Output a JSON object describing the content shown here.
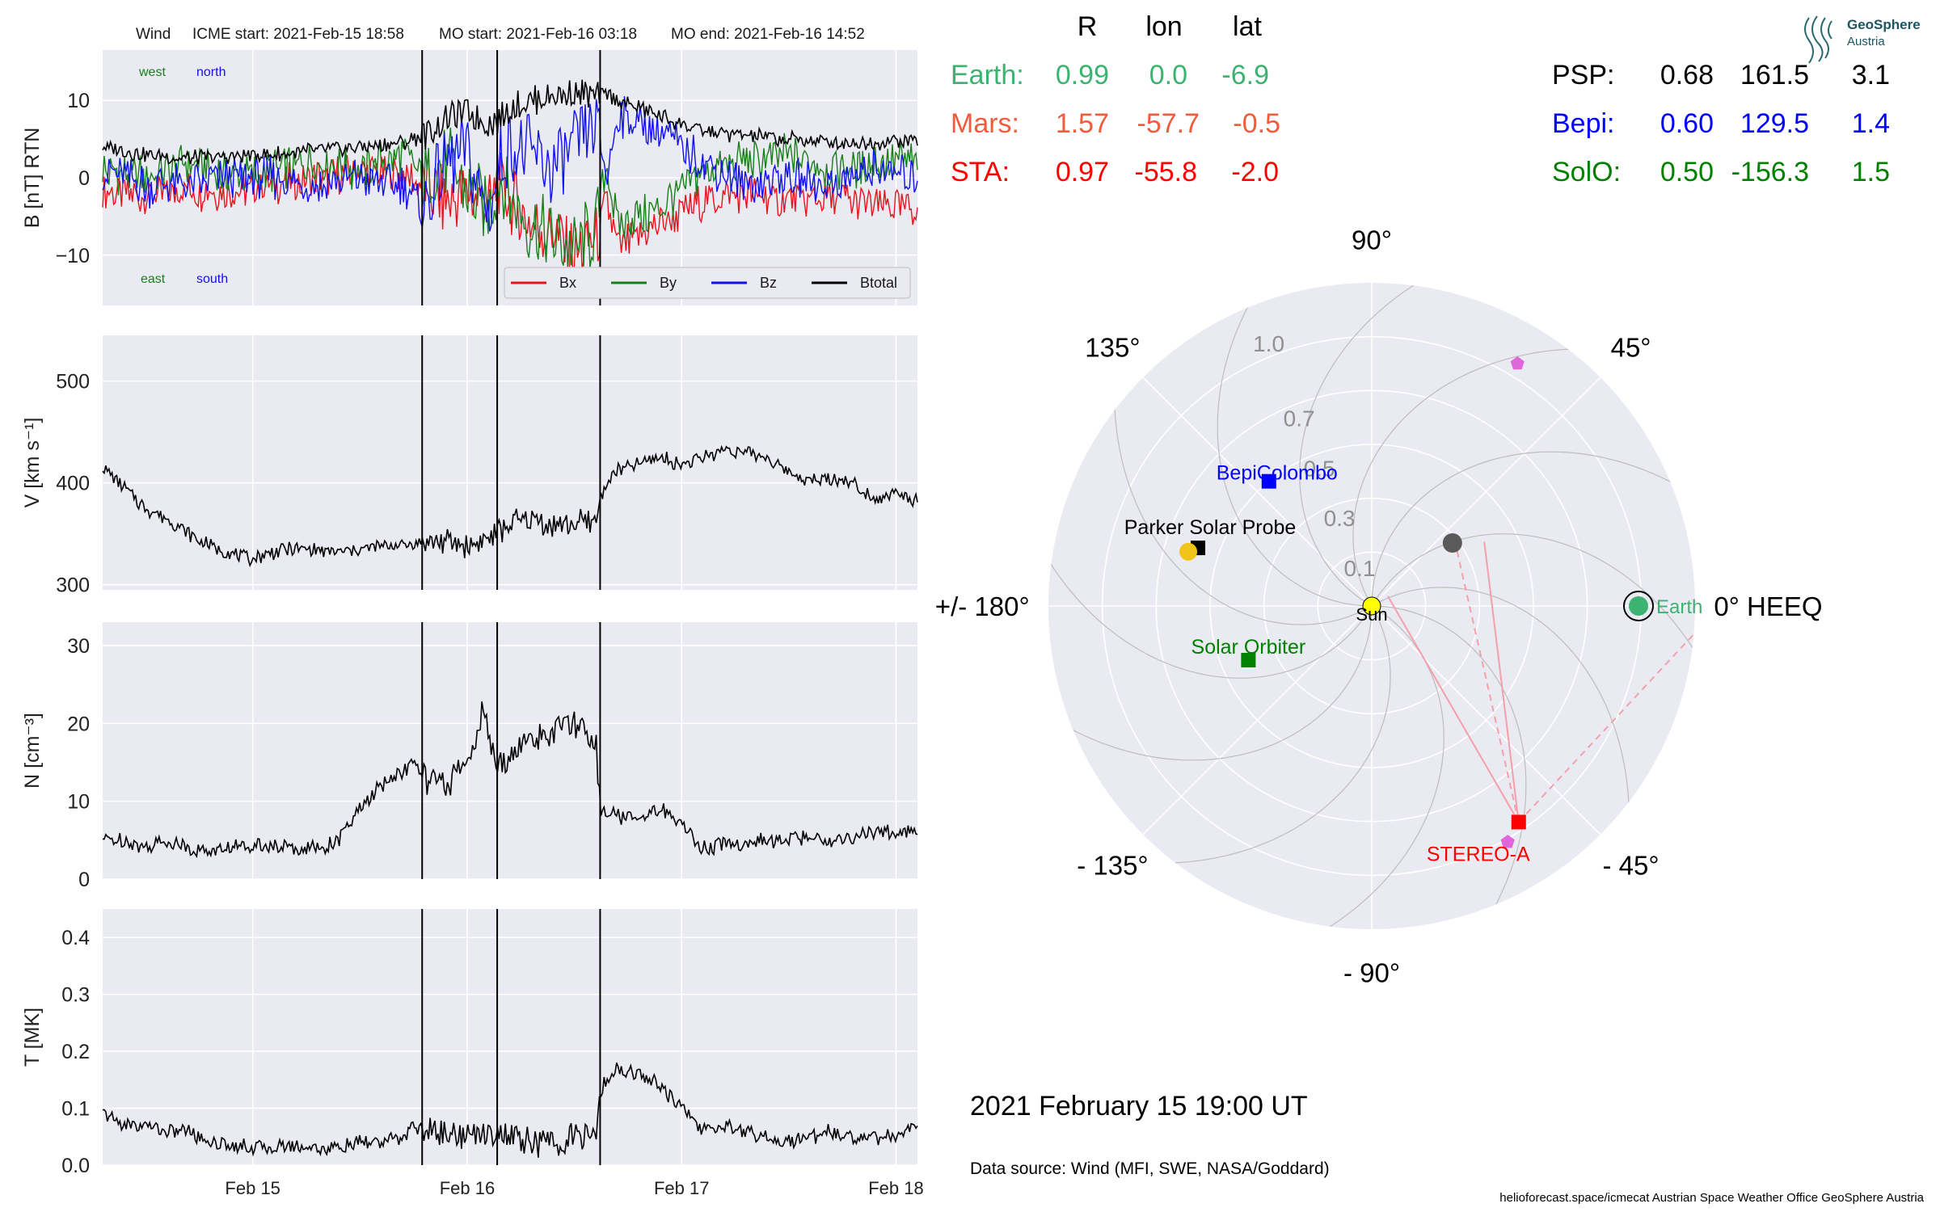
{
  "header": {
    "spacecraft": "Wind",
    "icme_start": "ICME start: 2021-Feb-15 18:58",
    "mo_start": "MO start: 2021-Feb-16 03:18",
    "mo_end": "MO end: 2021-Feb-16 14:52"
  },
  "colors": {
    "bx": "#e8141c",
    "by": "#1a7f1a",
    "bz": "#1010f0",
    "btotal": "#000000",
    "earth": "#3cb371",
    "mars": "#f25c3c",
    "sta": "#ff0000",
    "psp": "#000000",
    "bepi": "#0000ff",
    "solo": "#008000",
    "panel_bg": "#eaeaf2",
    "grid": "#ffffff"
  },
  "position_table": {
    "col_headers": [
      "R",
      "lon",
      "lat"
    ],
    "left_rows": [
      {
        "name": "Earth:",
        "R": "0.99",
        "lon": "0.0",
        "lat": "-6.9",
        "color": "#3cb371"
      },
      {
        "name": "Mars:",
        "R": "1.57",
        "lon": "-57.7",
        "lat": "-0.5",
        "color": "#f25c3c"
      },
      {
        "name": "STA:",
        "R": "0.97",
        "lon": "-55.8",
        "lat": "-2.0",
        "color": "#ff0000"
      }
    ],
    "right_rows": [
      {
        "name": "PSP:",
        "R": "0.68",
        "lon": "161.5",
        "lat": "3.1",
        "color": "#000000"
      },
      {
        "name": "Bepi:",
        "R": "0.60",
        "lon": "129.5",
        "lat": "1.4",
        "color": "#0000ff"
      },
      {
        "name": "SolO:",
        "R": "0.50",
        "lon": "-156.3",
        "lat": "1.5",
        "color": "#008000"
      }
    ]
  },
  "logo": {
    "line1": "GeoSphere",
    "line2": "Austria"
  },
  "polar": {
    "angle_labels": [
      {
        "text": "0° HEEQ",
        "angle": 0
      },
      {
        "text": "45°",
        "angle": 45
      },
      {
        "text": "90°",
        "angle": 90
      },
      {
        "text": "135°",
        "angle": 135
      },
      {
        "text": "+/- 180°",
        "angle": 180
      },
      {
        "text": "- 135°",
        "angle": -135
      },
      {
        "text": "- 90°",
        "angle": -90
      },
      {
        "text": "- 45°",
        "angle": -45
      }
    ],
    "radial_labels": [
      "0.1",
      "0.3",
      "0.5",
      "0.7",
      "1.0"
    ],
    "bodies": [
      {
        "label": "Sun",
        "r": 0,
        "lon": 0,
        "marker": "circle",
        "color": "#ffff00"
      },
      {
        "label": "Earth",
        "r": 0.99,
        "lon": 0.0,
        "marker": "circle",
        "color": "#3cb371"
      },
      {
        "label": "STEREO-A",
        "r": 0.97,
        "lon": -55.8,
        "marker": "square",
        "color": "#ff0000"
      },
      {
        "label": "Parker Solar Probe",
        "r": 0.68,
        "lon": 161.5,
        "marker": "square",
        "color": "#000000"
      },
      {
        "label": "BepiColombo",
        "r": 0.6,
        "lon": 129.5,
        "marker": "square",
        "color": "#0000ff"
      },
      {
        "label": "Solar Orbiter",
        "r": 0.5,
        "lon": -156.3,
        "marker": "square",
        "color": "#008000"
      }
    ]
  },
  "datetime": "2021 February 15  19:00 UT",
  "data_source": "Data source: Wind (MFI, SWE, NASA/Goddard)",
  "footer": "helioforecast.space/icmecat   Austrian Space Weather Office   GeoSphere Austria",
  "chart_data": [
    {
      "type": "line",
      "panel": "B",
      "ylabel": "B [nT] RTN",
      "ylim": [
        -16.5,
        16.5
      ],
      "yticks": [
        -10,
        0,
        10
      ],
      "xlim": [
        0,
        3.8
      ],
      "xticks": [
        {
          "x": 0.7,
          "label": "Feb 15"
        },
        {
          "x": 1.7,
          "label": "Feb 16"
        },
        {
          "x": 2.7,
          "label": "Feb 17"
        },
        {
          "x": 3.7,
          "label": "Feb 18"
        }
      ],
      "event_lines_x": [
        1.49,
        1.84,
        2.32
      ],
      "annotations": {
        "top_left": "west",
        "top_right": "north",
        "bottom_left": "east",
        "bottom_right": "south"
      },
      "legend": {
        "entries": [
          "Bx",
          "By",
          "Bz",
          "Btotal"
        ],
        "placement": "lower-right"
      },
      "series": [
        {
          "name": "Bx",
          "color": "#e8141c",
          "x": [
            0.0,
            0.2,
            0.4,
            0.6,
            0.8,
            1.0,
            1.2,
            1.4,
            1.5,
            1.6,
            1.7,
            1.8,
            1.85,
            1.9,
            2.0,
            2.1,
            2.2,
            2.3,
            2.35,
            2.4,
            2.5,
            2.6,
            2.8,
            3.0,
            3.2,
            3.4,
            3.6,
            3.8
          ],
          "y": [
            -2.0,
            -2.5,
            -1.5,
            -2.0,
            -1.0,
            0.0,
            1.0,
            0.5,
            -1.0,
            -3.0,
            -2.0,
            -4.0,
            -1.0,
            -3.0,
            -6.0,
            -7.0,
            -10.0,
            -8.0,
            -3.0,
            -9.0,
            -8.0,
            -6.0,
            -3.0,
            -2.0,
            -3.0,
            -2.5,
            -3.5,
            -4.0
          ]
        },
        {
          "name": "By",
          "color": "#1a7f1a",
          "x": [
            0.0,
            0.2,
            0.4,
            0.6,
            0.8,
            1.0,
            1.2,
            1.4,
            1.5,
            1.6,
            1.7,
            1.8,
            1.85,
            1.9,
            2.0,
            2.1,
            2.2,
            2.3,
            2.35,
            2.4,
            2.5,
            2.6,
            2.8,
            3.0,
            3.2,
            3.4,
            3.6,
            3.8
          ],
          "y": [
            1.0,
            0.0,
            2.0,
            0.0,
            1.0,
            2.0,
            1.0,
            3.0,
            0.0,
            2.0,
            -2.0,
            -4.0,
            0.0,
            -3.0,
            -6.0,
            -8.0,
            -9.0,
            -7.0,
            2.0,
            -6.0,
            -5.0,
            -4.0,
            1.0,
            2.0,
            3.0,
            1.0,
            2.0,
            2.0
          ]
        },
        {
          "name": "Bz",
          "color": "#1010f0",
          "x": [
            0.0,
            0.2,
            0.4,
            0.6,
            0.8,
            1.0,
            1.2,
            1.4,
            1.5,
            1.6,
            1.7,
            1.8,
            1.85,
            1.9,
            2.0,
            2.1,
            2.2,
            2.3,
            2.35,
            2.4,
            2.5,
            2.6,
            2.8,
            3.0,
            3.2,
            3.4,
            3.6,
            3.8
          ],
          "y": [
            1.0,
            -1.0,
            -1.0,
            0.0,
            0.0,
            -1.0,
            0.0,
            -1.0,
            -4.0,
            2.0,
            3.0,
            -5.0,
            2.0,
            4.0,
            3.0,
            1.0,
            4.0,
            7.0,
            0.0,
            8.0,
            7.0,
            6.0,
            2.0,
            -1.0,
            0.0,
            -1.0,
            1.0,
            0.0
          ]
        },
        {
          "name": "Btotal",
          "color": "#000000",
          "x": [
            0.0,
            0.2,
            0.4,
            0.6,
            0.8,
            1.0,
            1.2,
            1.4,
            1.5,
            1.6,
            1.7,
            1.8,
            1.85,
            1.9,
            2.0,
            2.1,
            2.2,
            2.3,
            2.35,
            2.4,
            2.5,
            2.6,
            2.8,
            3.0,
            3.2,
            3.4,
            3.6,
            3.8
          ],
          "y": [
            4.0,
            3.0,
            2.5,
            2.8,
            3.0,
            3.5,
            4.0,
            4.5,
            5.5,
            7.5,
            8.5,
            7.0,
            7.5,
            9.0,
            10.0,
            10.5,
            11.0,
            10.5,
            11.0,
            10.0,
            9.0,
            8.0,
            6.0,
            5.5,
            5.0,
            4.5,
            4.5,
            5.0
          ]
        }
      ]
    },
    {
      "type": "line",
      "panel": "V",
      "ylabel": "V [km s$^{-1}$]",
      "ylim": [
        295,
        545
      ],
      "yticks": [
        300,
        400,
        500
      ],
      "xlim": [
        0,
        3.8
      ],
      "xticks": [
        {
          "x": 0.7,
          "label": "Feb 15"
        },
        {
          "x": 1.7,
          "label": "Feb 16"
        },
        {
          "x": 2.7,
          "label": "Feb 17"
        },
        {
          "x": 3.7,
          "label": "Feb 18"
        }
      ],
      "event_lines_x": [
        1.49,
        1.84,
        2.32
      ],
      "series": [
        {
          "name": "V",
          "color": "#000000",
          "x": [
            0.0,
            0.1,
            0.2,
            0.3,
            0.4,
            0.5,
            0.6,
            0.7,
            0.8,
            0.9,
            1.0,
            1.1,
            1.2,
            1.3,
            1.4,
            1.5,
            1.6,
            1.7,
            1.8,
            1.85,
            1.9,
            2.0,
            2.1,
            2.2,
            2.3,
            2.32,
            2.35,
            2.4,
            2.5,
            2.6,
            2.7,
            2.8,
            2.9,
            3.0,
            3.1,
            3.2,
            3.3,
            3.4,
            3.5,
            3.6,
            3.7,
            3.8
          ],
          "y": [
            415,
            395,
            375,
            365,
            350,
            338,
            330,
            325,
            332,
            336,
            334,
            332,
            335,
            338,
            340,
            342,
            343,
            338,
            345,
            352,
            360,
            365,
            358,
            360,
            362,
            385,
            400,
            412,
            418,
            425,
            418,
            425,
            433,
            430,
            425,
            410,
            402,
            405,
            400,
            385,
            390,
            382
          ]
        }
      ]
    },
    {
      "type": "line",
      "panel": "N",
      "ylabel": "N [cm$^{-3}$]",
      "ylim": [
        0,
        33
      ],
      "yticks": [
        0,
        10,
        20,
        30
      ],
      "xlim": [
        0,
        3.8
      ],
      "xticks": [
        {
          "x": 0.7,
          "label": "Feb 15"
        },
        {
          "x": 1.7,
          "label": "Feb 16"
        },
        {
          "x": 2.7,
          "label": "Feb 17"
        },
        {
          "x": 3.7,
          "label": "Feb 18"
        }
      ],
      "event_lines_x": [
        1.49,
        1.84,
        2.32
      ],
      "series": [
        {
          "name": "N",
          "color": "#000000",
          "x": [
            0.0,
            0.1,
            0.2,
            0.3,
            0.4,
            0.5,
            0.6,
            0.7,
            0.8,
            0.9,
            1.0,
            1.1,
            1.2,
            1.3,
            1.4,
            1.45,
            1.5,
            1.6,
            1.7,
            1.78,
            1.8,
            1.84,
            1.9,
            2.0,
            2.1,
            2.2,
            2.3,
            2.32,
            2.4,
            2.5,
            2.6,
            2.7,
            2.8,
            2.9,
            3.0,
            3.1,
            3.2,
            3.3,
            3.4,
            3.5,
            3.6,
            3.7,
            3.8
          ],
          "y": [
            5,
            5,
            4,
            5,
            4,
            3.5,
            4,
            4.5,
            4,
            4,
            4,
            5,
            9,
            12,
            14,
            15,
            13,
            12,
            15,
            22,
            18,
            14,
            16,
            18,
            19,
            20,
            18,
            9,
            8,
            8,
            9,
            7,
            4,
            4.5,
            4.5,
            5,
            5,
            5.5,
            5,
            5.5,
            6,
            6,
            6
          ]
        }
      ]
    },
    {
      "type": "line",
      "panel": "T",
      "ylabel": "T [MK]",
      "ylim": [
        0,
        0.45
      ],
      "yticks": [
        0.0,
        0.1,
        0.2,
        0.3,
        0.4
      ],
      "xlim": [
        0,
        3.8
      ],
      "xticks": [
        {
          "x": 0.7,
          "label": "Feb 15"
        },
        {
          "x": 1.7,
          "label": "Feb 16"
        },
        {
          "x": 2.7,
          "label": "Feb 17"
        },
        {
          "x": 3.7,
          "label": "Feb 18"
        }
      ],
      "event_lines_x": [
        1.49,
        1.84,
        2.32
      ],
      "series": [
        {
          "name": "T",
          "color": "#000000",
          "x": [
            0.0,
            0.1,
            0.2,
            0.3,
            0.4,
            0.5,
            0.6,
            0.7,
            0.8,
            0.9,
            1.0,
            1.1,
            1.2,
            1.3,
            1.4,
            1.45,
            1.5,
            1.6,
            1.7,
            1.8,
            1.9,
            2.0,
            2.1,
            2.2,
            2.3,
            2.32,
            2.4,
            2.5,
            2.6,
            2.7,
            2.8,
            2.9,
            3.0,
            3.1,
            3.2,
            3.3,
            3.4,
            3.5,
            3.6,
            3.7,
            3.8
          ],
          "y": [
            0.09,
            0.07,
            0.07,
            0.06,
            0.06,
            0.04,
            0.035,
            0.03,
            0.03,
            0.035,
            0.03,
            0.03,
            0.04,
            0.04,
            0.05,
            0.07,
            0.06,
            0.06,
            0.05,
            0.06,
            0.05,
            0.04,
            0.04,
            0.05,
            0.05,
            0.13,
            0.17,
            0.16,
            0.14,
            0.1,
            0.06,
            0.07,
            0.06,
            0.05,
            0.04,
            0.05,
            0.06,
            0.05,
            0.05,
            0.05,
            0.07
          ]
        }
      ]
    }
  ]
}
